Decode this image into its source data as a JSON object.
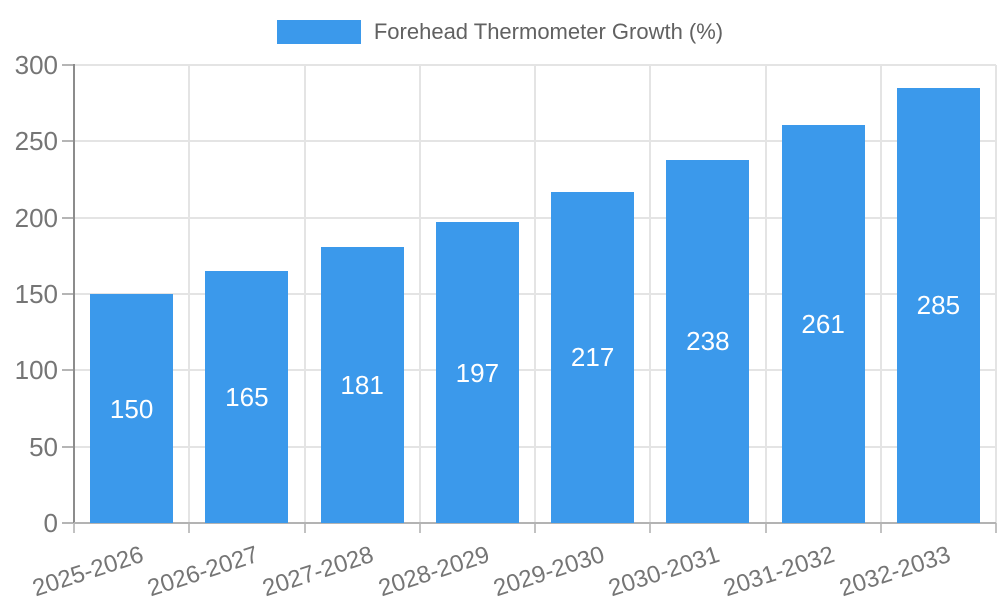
{
  "chart_data": {
    "type": "bar",
    "title": "",
    "series_name": "Forehead Thermometer Growth (%)",
    "categories": [
      "2025-2026",
      "2026-2027",
      "2027-2028",
      "2028-2029",
      "2029-2030",
      "2030-2031",
      "2031-2032",
      "2032-2033"
    ],
    "values": [
      150,
      165,
      181,
      197,
      217,
      238,
      261,
      285
    ],
    "xlabel": "",
    "ylabel": "",
    "ylim": [
      0,
      300
    ],
    "yticks": [
      0,
      50,
      100,
      150,
      200,
      250,
      300
    ],
    "grid": "both",
    "legend_position": "top",
    "x_tick_rotation_deg": -18,
    "bar_color": "#3B99EB",
    "value_label_color": "#FFFFFF",
    "value_labels_inside": true
  }
}
